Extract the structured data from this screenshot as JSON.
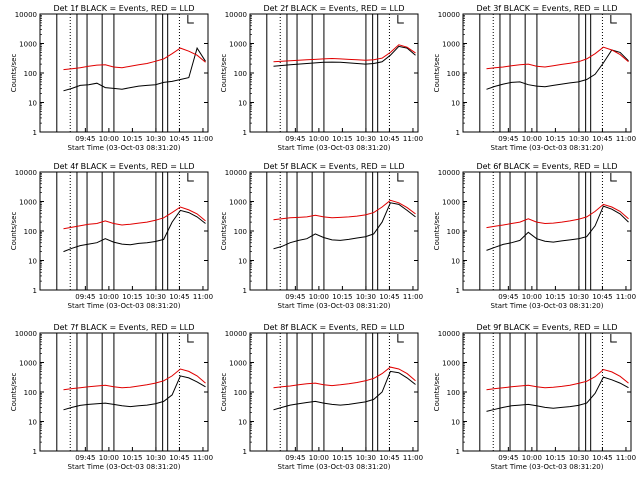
{
  "chart_data": [
    {
      "type": "line",
      "title": "Det 1f BLACK = Events, RED = LLD",
      "xlabel": "Start Time (03-Oct-03 08:31:20)",
      "ylabel": "Counts/sec",
      "xticks": [
        "09:45",
        "10:00",
        "10:15",
        "10:30",
        "10:45",
        "11:00"
      ],
      "yticks": [
        "1",
        "10",
        "100",
        "1000",
        "10000"
      ],
      "ylog": true,
      "ylim": [
        1,
        10000
      ],
      "series": [
        {
          "color": "#000000",
          "values": [
            25,
            30,
            38,
            40,
            45,
            32,
            30,
            28,
            32,
            36,
            38,
            40,
            48,
            52,
            60,
            70,
            700,
            250
          ]
        },
        {
          "color": "#e00000",
          "values": [
            130,
            140,
            150,
            170,
            185,
            190,
            160,
            150,
            170,
            190,
            210,
            250,
            300,
            450,
            700,
            550,
            400,
            230
          ]
        }
      ]
    },
    {
      "type": "line",
      "title": "Det 2f BLACK = Events, RED = LLD",
      "xlabel": "Start Time (03-Oct-03 08:31:20)",
      "ylabel": "Counts/sec",
      "xticks": [
        "09:45",
        "10:00",
        "10:15",
        "10:30",
        "10:45",
        "11:00"
      ],
      "yticks": [
        "1",
        "10",
        "100",
        "1000",
        "10000"
      ],
      "ylog": true,
      "ylim": [
        1,
        10000
      ],
      "series": [
        {
          "color": "#000000",
          "values": [
            170,
            180,
            190,
            200,
            210,
            220,
            230,
            235,
            230,
            220,
            210,
            200,
            210,
            240,
            400,
            800,
            700,
            400
          ]
        },
        {
          "color": "#e00000",
          "values": [
            240,
            250,
            260,
            270,
            280,
            290,
            300,
            310,
            300,
            290,
            280,
            270,
            280,
            320,
            500,
            900,
            750,
            480
          ]
        }
      ]
    },
    {
      "type": "line",
      "title": "Det 3f BLACK = Events, RED = LLD",
      "xlabel": "Start Time (03-Oct-03 08:31:20)",
      "ylabel": "Counts/sec",
      "xticks": [
        "09:45",
        "10:00",
        "10:15",
        "10:30",
        "10:45",
        "11:00"
      ],
      "yticks": [
        "1",
        "10",
        "100",
        "1000",
        "10000"
      ],
      "ylog": true,
      "ylim": [
        1,
        10000
      ],
      "series": [
        {
          "color": "#000000",
          "values": [
            28,
            35,
            42,
            48,
            50,
            40,
            36,
            34,
            38,
            42,
            46,
            50,
            60,
            90,
            220,
            600,
            500,
            260
          ]
        },
        {
          "color": "#e00000",
          "values": [
            140,
            150,
            160,
            175,
            190,
            200,
            170,
            160,
            175,
            195,
            215,
            240,
            300,
            450,
            750,
            600,
            420,
            240
          ]
        }
      ]
    },
    {
      "type": "line",
      "title": "Det 4f BLACK = Events, RED = LLD",
      "xlabel": "Start Time (03-Oct-03 08:31:20)",
      "ylabel": "Counts/sec",
      "xticks": [
        "09:45",
        "10:00",
        "10:15",
        "10:30",
        "10:45",
        "11:00"
      ],
      "yticks": [
        "1",
        "10",
        "100",
        "1000",
        "10000"
      ],
      "ylog": true,
      "ylim": [
        1,
        10000
      ],
      "series": [
        {
          "color": "#000000",
          "values": [
            20,
            26,
            32,
            36,
            40,
            55,
            42,
            36,
            34,
            38,
            40,
            44,
            52,
            200,
            500,
            420,
            300,
            180
          ]
        },
        {
          "color": "#e00000",
          "values": [
            120,
            135,
            150,
            170,
            180,
            220,
            180,
            160,
            170,
            185,
            200,
            230,
            280,
            420,
            650,
            520,
            380,
            220
          ]
        }
      ]
    },
    {
      "type": "line",
      "title": "Det 5f BLACK = Events, RED = LLD",
      "xlabel": "Start Time (03-Oct-03 08:31:20)",
      "ylabel": "Counts/sec",
      "xticks": [
        "09:45",
        "10:00",
        "10:15",
        "10:30",
        "10:45",
        "11:00"
      ],
      "yticks": [
        "1",
        "10",
        "100",
        "1000",
        "10000"
      ],
      "ylog": true,
      "ylim": [
        1,
        10000
      ],
      "series": [
        {
          "color": "#000000",
          "values": [
            25,
            30,
            40,
            48,
            55,
            80,
            60,
            50,
            48,
            52,
            58,
            64,
            80,
            200,
            900,
            800,
            500,
            300
          ]
        },
        {
          "color": "#e00000",
          "values": [
            240,
            260,
            280,
            290,
            300,
            340,
            300,
            280,
            290,
            300,
            320,
            350,
            420,
            650,
            1100,
            900,
            620,
            380
          ]
        }
      ]
    },
    {
      "type": "line",
      "title": "Det 6f BLACK = Events, RED = LLD",
      "xlabel": "Start Time (03-Oct-03 08:31:20)",
      "ylabel": "Counts/sec",
      "xticks": [
        "09:45",
        "10:00",
        "10:15",
        "10:30",
        "10:45",
        "11:00"
      ],
      "yticks": [
        "1",
        "10",
        "100",
        "1000",
        "10000"
      ],
      "ylog": true,
      "ylim": [
        1,
        10000
      ],
      "series": [
        {
          "color": "#000000",
          "values": [
            22,
            28,
            35,
            40,
            48,
            90,
            55,
            45,
            42,
            46,
            50,
            55,
            64,
            150,
            700,
            550,
            380,
            200
          ]
        },
        {
          "color": "#e00000",
          "values": [
            130,
            145,
            160,
            180,
            200,
            260,
            200,
            180,
            185,
            200,
            220,
            250,
            300,
            460,
            800,
            650,
            460,
            260
          ]
        }
      ]
    },
    {
      "type": "line",
      "title": "Det 7f BLACK = Events, RED = LLD",
      "xlabel": "Start Time (03-Oct-03 08:31:20)",
      "ylabel": "Counts/sec",
      "xticks": [
        "09:45",
        "10:00",
        "10:15",
        "10:30",
        "10:45",
        "11:00"
      ],
      "yticks": [
        "1",
        "10",
        "100",
        "1000",
        "10000"
      ],
      "ylog": true,
      "ylim": [
        1,
        10000
      ],
      "series": [
        {
          "color": "#000000",
          "values": [
            25,
            30,
            35,
            38,
            40,
            42,
            38,
            34,
            32,
            34,
            36,
            40,
            48,
            80,
            350,
            300,
            220,
            150
          ]
        },
        {
          "color": "#e00000",
          "values": [
            120,
            130,
            140,
            150,
            160,
            170,
            150,
            140,
            145,
            160,
            175,
            200,
            240,
            350,
            600,
            500,
            350,
            200
          ]
        }
      ]
    },
    {
      "type": "line",
      "title": "Det 8f BLACK = Events, RED = LLD",
      "xlabel": "Start Time (03-Oct-03 08:31:20)",
      "ylabel": "Counts/sec",
      "xticks": [
        "09:45",
        "10:00",
        "10:15",
        "10:30",
        "10:45",
        "11:00"
      ],
      "yticks": [
        "1",
        "10",
        "100",
        "1000",
        "10000"
      ],
      "ylog": true,
      "ylim": [
        1,
        10000
      ],
      "series": [
        {
          "color": "#000000",
          "values": [
            25,
            30,
            36,
            40,
            44,
            48,
            42,
            38,
            36,
            38,
            42,
            46,
            56,
            100,
            500,
            450,
            300,
            180
          ]
        },
        {
          "color": "#e00000",
          "values": [
            140,
            150,
            160,
            175,
            190,
            200,
            175,
            165,
            175,
            190,
            210,
            240,
            290,
            420,
            700,
            600,
            420,
            240
          ]
        }
      ]
    },
    {
      "type": "line",
      "title": "Det 9f BLACK = Events, RED = LLD",
      "xlabel": "Start Time (03-Oct-03 08:31:20)",
      "ylabel": "Counts/sec",
      "xticks": [
        "09:45",
        "10:00",
        "10:15",
        "10:30",
        "10:45",
        "11:00"
      ],
      "yticks": [
        "1",
        "10",
        "100",
        "1000",
        "10000"
      ],
      "ylog": true,
      "ylim": [
        1,
        10000
      ],
      "series": [
        {
          "color": "#000000",
          "values": [
            22,
            26,
            30,
            34,
            36,
            38,
            34,
            30,
            28,
            30,
            32,
            35,
            42,
            90,
            320,
            260,
            200,
            140
          ]
        },
        {
          "color": "#e00000",
          "values": [
            120,
            130,
            140,
            150,
            160,
            170,
            150,
            140,
            145,
            155,
            170,
            195,
            230,
            330,
            580,
            480,
            340,
            200
          ]
        }
      ]
    }
  ]
}
